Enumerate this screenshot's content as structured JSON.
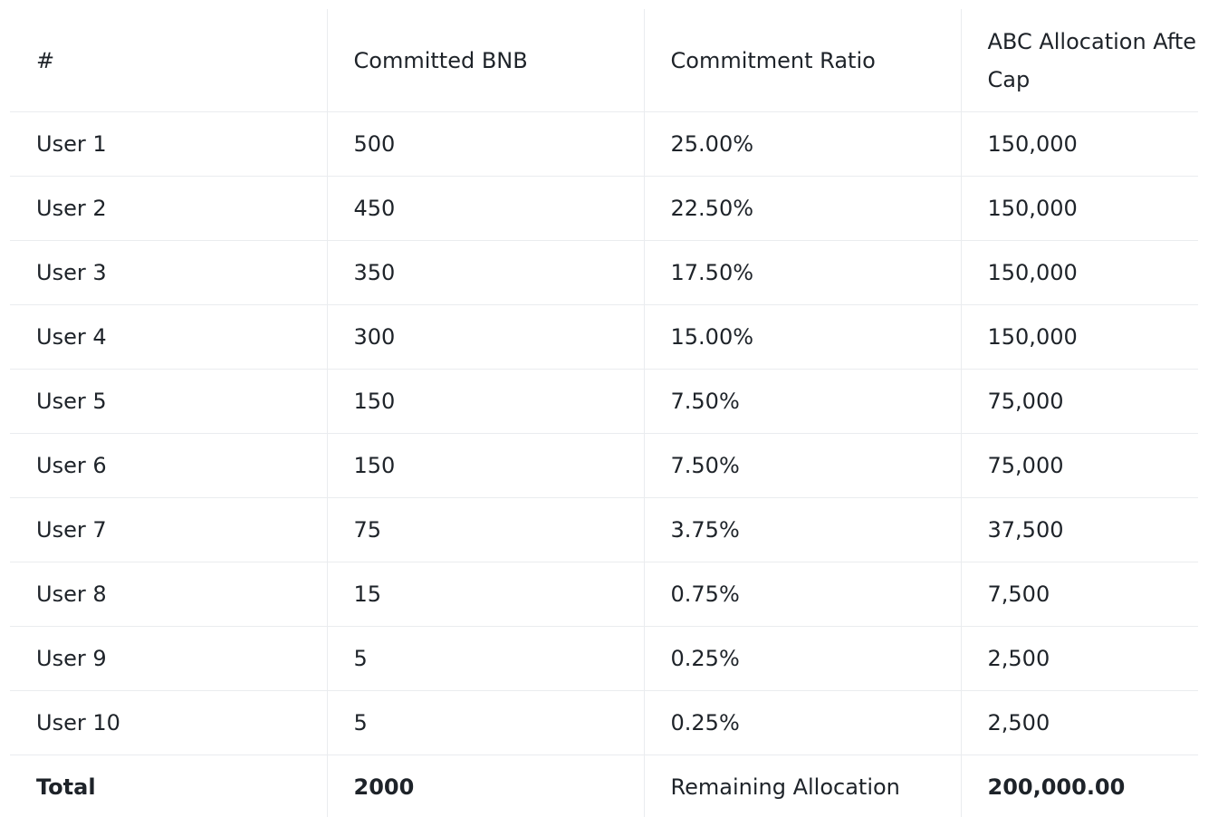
{
  "table": {
    "headers": [
      "#",
      "Committed BNB",
      "Commitment Ratio",
      "ABC Allocation After Hard Cap"
    ],
    "rows": [
      [
        "User 1",
        "500",
        "25.00%",
        "150,000"
      ],
      [
        "User 2",
        "450",
        "22.50%",
        "150,000"
      ],
      [
        "User 3",
        "350",
        "17.50%",
        "150,000"
      ],
      [
        "User 4",
        "300",
        "15.00%",
        "150,000"
      ],
      [
        "User 5",
        "150",
        "7.50%",
        "75,000"
      ],
      [
        "User 6",
        "150",
        "7.50%",
        "75,000"
      ],
      [
        "User 7",
        "75",
        "3.75%",
        "37,500"
      ],
      [
        "User 8",
        "15",
        "0.75%",
        "7,500"
      ],
      [
        "User 9",
        "5",
        "0.25%",
        "2,500"
      ],
      [
        "User 10",
        "5",
        "0.25%",
        "2,500"
      ]
    ],
    "total": [
      "Total",
      "2000",
      "Remaining Allocation",
      "200,000.00"
    ]
  }
}
